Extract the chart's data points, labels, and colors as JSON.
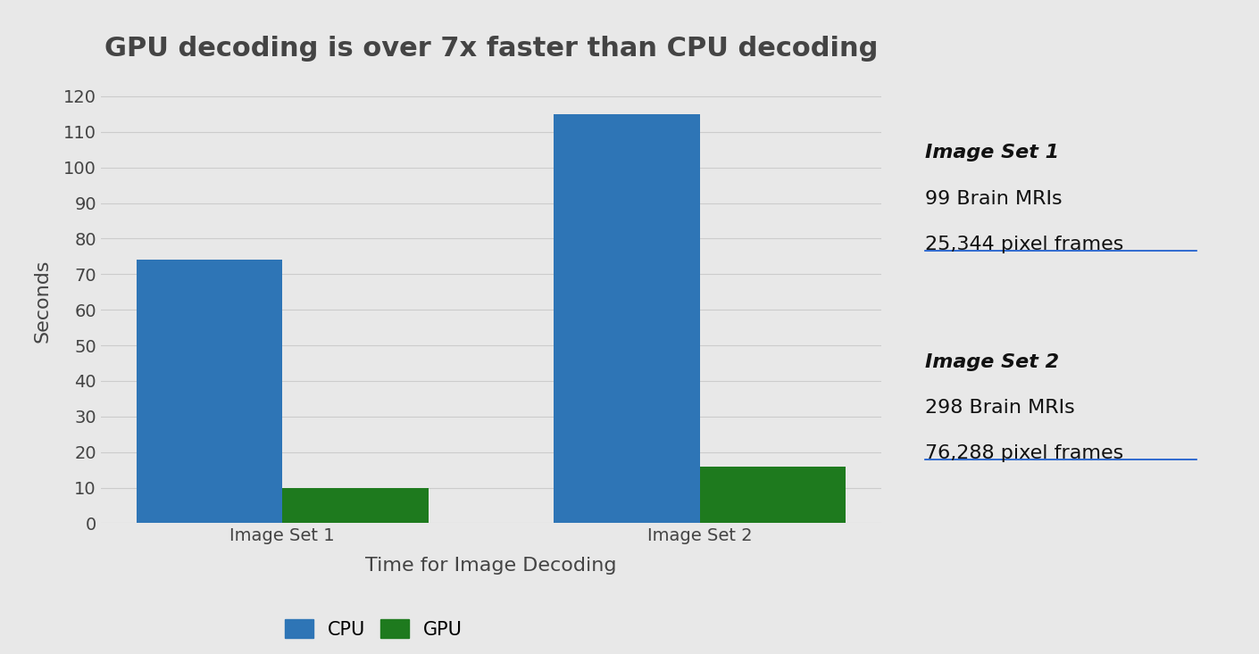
{
  "title": "GPU decoding is over 7x faster than CPU decoding",
  "xlabel": "Time for Image Decoding",
  "ylabel": "Seconds",
  "categories": [
    "Image Set 1",
    "Image Set 2"
  ],
  "cpu_values": [
    74,
    115
  ],
  "gpu_values": [
    10,
    16
  ],
  "cpu_color": "#2E75B6",
  "gpu_color": "#1E7A1E",
  "background_color": "#E8E8E8",
  "ylim": [
    0,
    125
  ],
  "yticks": [
    0,
    10,
    20,
    30,
    40,
    50,
    60,
    70,
    80,
    90,
    100,
    110,
    120
  ],
  "bar_width": 0.35,
  "annotation1_title": "Image Set 1",
  "annotation1_line1": "99 Brain MRIs",
  "annotation1_line2": "25,344 pixel frames",
  "annotation2_title": "Image Set 2",
  "annotation2_line1": "298 Brain MRIs",
  "annotation2_line2": "76,288 pixel frames",
  "title_fontsize": 22,
  "axis_label_fontsize": 16,
  "tick_fontsize": 14,
  "legend_fontsize": 15,
  "annotation_fontsize": 16,
  "text_color": "#444444",
  "grid_color": "#CCCCCC",
  "underline_color": "#1155CC"
}
